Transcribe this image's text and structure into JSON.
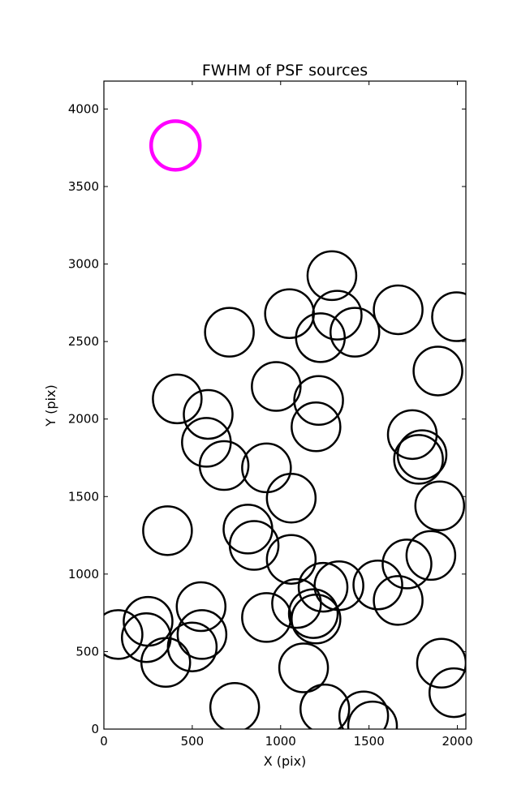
{
  "chart_data": {
    "type": "scatter",
    "title": "FWHM of PSF sources",
    "xlabel": "X (pix)",
    "ylabel": "Y (pix)",
    "xlim": [
      0,
      2048
    ],
    "ylim": [
      0,
      4180
    ],
    "xticks": [
      0,
      500,
      1000,
      1500,
      2000
    ],
    "yticks": [
      0,
      500,
      1000,
      1500,
      2000,
      2500,
      3000,
      3500,
      4000
    ],
    "grid": false,
    "legend": "none",
    "reference": {
      "x": 405,
      "y": 3765,
      "color": "#ff00ff"
    },
    "source_color": "#000000",
    "points": [
      {
        "x": 1290,
        "y": 2925
      },
      {
        "x": 1050,
        "y": 2680
      },
      {
        "x": 1320,
        "y": 2670
      },
      {
        "x": 1225,
        "y": 2525
      },
      {
        "x": 1420,
        "y": 2560
      },
      {
        "x": 1665,
        "y": 2705
      },
      {
        "x": 1995,
        "y": 2660
      },
      {
        "x": 710,
        "y": 2560
      },
      {
        "x": 975,
        "y": 2210
      },
      {
        "x": 1215,
        "y": 2120
      },
      {
        "x": 1200,
        "y": 1950
      },
      {
        "x": 1890,
        "y": 2310
      },
      {
        "x": 415,
        "y": 2130
      },
      {
        "x": 590,
        "y": 2030
      },
      {
        "x": 580,
        "y": 1850
      },
      {
        "x": 680,
        "y": 1700
      },
      {
        "x": 920,
        "y": 1685
      },
      {
        "x": 1745,
        "y": 1900
      },
      {
        "x": 1800,
        "y": 1770
      },
      {
        "x": 1780,
        "y": 1740
      },
      {
        "x": 1060,
        "y": 1490
      },
      {
        "x": 1900,
        "y": 1440
      },
      {
        "x": 360,
        "y": 1280
      },
      {
        "x": 815,
        "y": 1290
      },
      {
        "x": 850,
        "y": 1185
      },
      {
        "x": 1060,
        "y": 1095
      },
      {
        "x": 1715,
        "y": 1065
      },
      {
        "x": 1850,
        "y": 1120
      },
      {
        "x": 1550,
        "y": 930
      },
      {
        "x": 1665,
        "y": 830
      },
      {
        "x": 1330,
        "y": 925
      },
      {
        "x": 1240,
        "y": 915
      },
      {
        "x": 1090,
        "y": 810
      },
      {
        "x": 1185,
        "y": 745
      },
      {
        "x": 1200,
        "y": 710
      },
      {
        "x": 550,
        "y": 790
      },
      {
        "x": 920,
        "y": 720
      },
      {
        "x": 555,
        "y": 610
      },
      {
        "x": 80,
        "y": 610
      },
      {
        "x": 250,
        "y": 695
      },
      {
        "x": 240,
        "y": 590
      },
      {
        "x": 350,
        "y": 430
      },
      {
        "x": 500,
        "y": 530
      },
      {
        "x": 1130,
        "y": 395
      },
      {
        "x": 1910,
        "y": 425
      },
      {
        "x": 1980,
        "y": 235
      },
      {
        "x": 740,
        "y": 140
      },
      {
        "x": 1250,
        "y": 130
      },
      {
        "x": 1470,
        "y": 85
      },
      {
        "x": 1520,
        "y": 20
      }
    ]
  }
}
